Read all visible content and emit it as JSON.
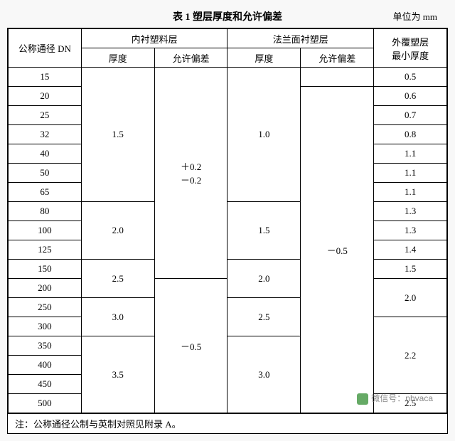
{
  "title": "表 1  塑层厚度和允许偏差",
  "unit": "单位为 mm",
  "headers": {
    "dn": "公称通径  DN",
    "inner": "内衬塑料层",
    "flange": "法兰面衬塑层",
    "outer": "外覆塑层\n最小厚度",
    "thick": "厚度",
    "tol": "允许偏差"
  },
  "dn": [
    "15",
    "20",
    "25",
    "32",
    "40",
    "50",
    "65",
    "80",
    "100",
    "125",
    "150",
    "200",
    "250",
    "300",
    "350",
    "400",
    "450",
    "500"
  ],
  "inner_thick": [
    "1.5",
    "2.0",
    "2.5",
    "3.0",
    "3.5"
  ],
  "inner_tol": [
    "＋0.2\n－0.2",
    "－0.5"
  ],
  "flange_thick": [
    "1.0",
    "1.5",
    "2.0",
    "2.5",
    "3.0"
  ],
  "flange_tol_top": "",
  "flange_tol": "－0.5",
  "outer": [
    "0.5",
    "0.6",
    "0.7",
    "0.8",
    "1.1",
    "1.1",
    "1.1",
    "1.3",
    "1.3",
    "1.4",
    "1.5",
    "2.0",
    "2.2",
    "2.5"
  ],
  "footnote": "注：公称通径公制与英制对照见附录 A。",
  "watermark": "微信号：nhvaca"
}
